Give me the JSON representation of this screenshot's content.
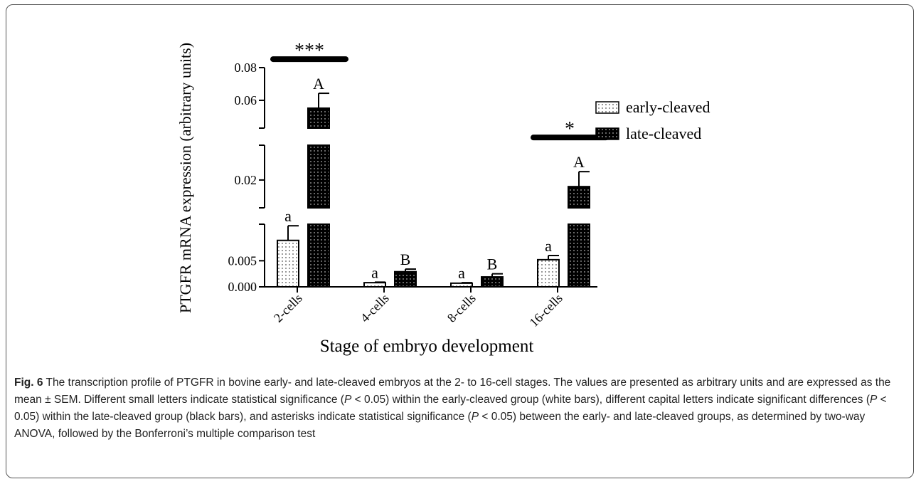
{
  "chart_data": {
    "type": "bar",
    "y_label": "PTGFR mRNA expression (arbitrary units)",
    "x_label": "Stage of embryo development",
    "categories": [
      "2-cells",
      "4-cells",
      "8-cells",
      "16-cells"
    ],
    "y_segments": [
      {
        "ylim": [
          0,
          0.012
        ],
        "yticks": [
          {
            "value": 0,
            "label": "0.000"
          },
          0.005
        ]
      },
      {
        "ylim": [
          0.012,
          0.03
        ],
        "yticks": [
          0.02
        ]
      },
      {
        "ylim": [
          0.043,
          0.08
        ],
        "yticks": [
          0.06,
          0.08
        ]
      }
    ],
    "series": [
      {
        "name": "early-cleaved",
        "color": "#ffffff",
        "values": [
          0.0089,
          0.0008,
          0.0007,
          0.0052
        ],
        "errors": [
          0.0028,
          0.0001,
          0.0001,
          0.0008
        ],
        "letters": [
          "a",
          "a",
          "a",
          "a"
        ]
      },
      {
        "name": "late-cleaved",
        "color": "#000000",
        "values": [
          0.0552,
          0.0029,
          0.0019,
          0.0181
        ],
        "errors": [
          0.0091,
          0.0005,
          0.0006,
          0.0043
        ],
        "letters": [
          "A",
          "B",
          "B",
          "A"
        ]
      }
    ],
    "significance": [
      "***",
      null,
      null,
      "*"
    ]
  },
  "caption": {
    "label": "Fig. 6",
    "parts": [
      " The transcription profile of PTGFR in bovine early- and late-cleaved embryos at the 2- to 16-cell stages. The values are presented as arbitrary units and are expressed as the mean ± SEM. Different small letters indicate statistical significance (",
      "P",
      " < 0.05) within the early-cleaved group (white bars), different capital letters indicate significant differences (",
      "P",
      " < 0.05) within the late-cleaved group (black bars), and asterisks indicate statistical significance (",
      "P",
      " < 0.05) between the early- and late-cleaved groups, as determined by two-way ANOVA, followed by the Bonferroni’s multiple comparison test"
    ]
  }
}
